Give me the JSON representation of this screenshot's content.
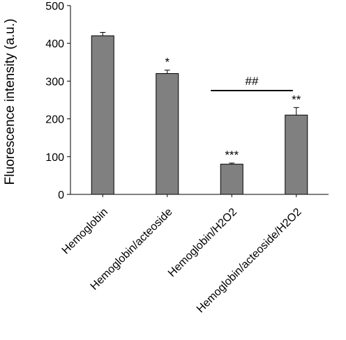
{
  "chart_data": {
    "type": "bar",
    "title": "",
    "xlabel": "",
    "ylabel": "Fluorescence intensity (a.u.)",
    "ylim": [
      0,
      500
    ],
    "yticks": [
      0,
      100,
      200,
      300,
      400,
      500
    ],
    "grid": false,
    "legend": "none",
    "bar_color": "#808080",
    "categories": [
      "Hemoglobin",
      "Hemoglobin/acteoside",
      "Hemoglobin/H2O2",
      "Hemoglobin/acteoside/H2O2"
    ],
    "values": [
      420,
      320,
      80,
      210
    ],
    "errors": [
      9,
      9,
      3,
      20
    ],
    "significance": [
      "",
      "*",
      "***",
      "**"
    ],
    "comparison": {
      "from": 2,
      "to": 3,
      "label": "##",
      "y": 275
    }
  }
}
